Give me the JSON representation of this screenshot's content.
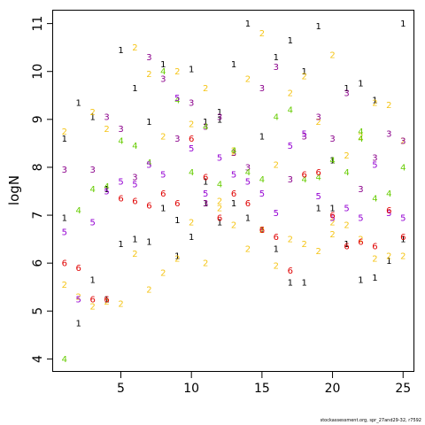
{
  "chart_data": {
    "type": "scatter",
    "ylabel": "logN",
    "xlim": [
      0.2,
      25.8
    ],
    "ylim": [
      3.73,
      11.27
    ],
    "xticks": [
      5,
      10,
      15,
      20,
      25
    ],
    "yticks": [
      4,
      5,
      6,
      7,
      8,
      9,
      10,
      11
    ],
    "marker": "series index digit",
    "grid": false,
    "series": [
      {
        "label": "1",
        "color": "#000000",
        "points": [
          [
            1,
            8.6
          ],
          [
            2,
            9.35
          ],
          [
            3,
            9.05
          ],
          [
            5,
            10.45
          ],
          [
            6,
            9.65
          ],
          [
            7,
            8.95
          ],
          [
            8,
            10.15
          ],
          [
            10,
            10.05
          ],
          [
            11,
            8.95
          ],
          [
            12,
            9.15
          ],
          [
            13,
            10.15
          ],
          [
            15,
            8.65
          ],
          [
            16,
            10.3
          ],
          [
            17,
            10.65
          ],
          [
            18,
            10.0
          ],
          [
            19,
            10.95
          ],
          [
            20,
            8.15
          ],
          [
            21,
            9.65
          ],
          [
            22,
            9.75
          ],
          [
            23,
            9.4
          ],
          [
            25,
            11.0
          ],
          [
            14,
            11.0
          ],
          [
            1,
            6.95
          ],
          [
            2,
            4.75
          ],
          [
            3,
            5.65
          ],
          [
            4,
            5.25
          ],
          [
            5,
            6.4
          ],
          [
            6,
            6.5
          ],
          [
            7,
            6.45
          ],
          [
            8,
            7.15
          ],
          [
            9,
            6.9
          ],
          [
            9,
            6.15
          ],
          [
            10,
            6.55
          ],
          [
            11,
            7.25
          ],
          [
            11,
            7.7
          ],
          [
            12,
            6.85
          ],
          [
            13,
            7.25
          ],
          [
            14,
            6.95
          ],
          [
            15,
            6.7
          ],
          [
            16,
            6.3
          ],
          [
            17,
            5.6
          ],
          [
            18,
            5.6
          ],
          [
            19,
            7.15
          ],
          [
            20,
            7.15
          ],
          [
            21,
            6.4
          ],
          [
            22,
            5.65
          ],
          [
            23,
            5.7
          ],
          [
            24,
            6.05
          ],
          [
            25,
            6.5
          ],
          [
            4,
            7.55
          ],
          [
            12,
            9.0
          ]
        ]
      },
      {
        "label": "2",
        "color": "#F5C518",
        "points": [
          [
            1,
            8.75
          ],
          [
            1,
            5.55
          ],
          [
            2,
            5.3
          ],
          [
            3,
            9.15
          ],
          [
            3,
            5.1
          ],
          [
            4,
            8.8
          ],
          [
            4,
            5.2
          ],
          [
            5,
            5.15
          ],
          [
            6,
            10.5
          ],
          [
            6,
            6.2
          ],
          [
            7,
            9.95
          ],
          [
            7,
            5.45
          ],
          [
            8,
            8.65
          ],
          [
            8,
            5.8
          ],
          [
            9,
            10.0
          ],
          [
            9,
            6.1
          ],
          [
            10,
            8.9
          ],
          [
            10,
            6.85
          ],
          [
            11,
            9.65
          ],
          [
            11,
            6.0
          ],
          [
            12,
            7.3
          ],
          [
            13,
            8.35
          ],
          [
            13,
            6.8
          ],
          [
            14,
            9.85
          ],
          [
            14,
            6.3
          ],
          [
            15,
            10.8
          ],
          [
            15,
            6.7
          ],
          [
            16,
            8.05
          ],
          [
            16,
            5.95
          ],
          [
            17,
            9.55
          ],
          [
            17,
            6.5
          ],
          [
            18,
            9.9
          ],
          [
            18,
            6.4
          ],
          [
            19,
            8.95
          ],
          [
            19,
            6.25
          ],
          [
            20,
            10.35
          ],
          [
            20,
            6.6
          ],
          [
            21,
            8.25
          ],
          [
            21,
            6.8
          ],
          [
            22,
            8.65
          ],
          [
            22,
            6.5
          ],
          [
            23,
            9.35
          ],
          [
            23,
            6.1
          ],
          [
            24,
            9.3
          ],
          [
            24,
            6.15
          ],
          [
            25,
            8.55
          ],
          [
            25,
            6.15
          ],
          [
            12,
            7.15
          ],
          [
            13,
            8.3
          ],
          [
            20,
            6.85
          ]
        ]
      },
      {
        "label": "3",
        "color": "#8B008B",
        "points": [
          [
            1,
            7.95
          ],
          [
            3,
            7.95
          ],
          [
            4,
            9.05
          ],
          [
            5,
            8.8
          ],
          [
            6,
            7.8
          ],
          [
            7,
            10.3
          ],
          [
            8,
            9.85
          ],
          [
            9,
            8.6
          ],
          [
            10,
            9.35
          ],
          [
            11,
            8.85
          ],
          [
            12,
            9.05
          ],
          [
            13,
            8.3
          ],
          [
            14,
            8.0
          ],
          [
            15,
            9.65
          ],
          [
            16,
            10.1
          ],
          [
            17,
            7.75
          ],
          [
            18,
            8.65
          ],
          [
            19,
            9.05
          ],
          [
            20,
            8.6
          ],
          [
            21,
            9.55
          ],
          [
            22,
            7.55
          ],
          [
            23,
            8.2
          ],
          [
            24,
            8.7
          ],
          [
            25,
            8.55
          ],
          [
            11,
            7.25
          ]
        ]
      },
      {
        "label": "4",
        "color": "#66CC00",
        "points": [
          [
            1,
            4.0
          ],
          [
            2,
            7.1
          ],
          [
            3,
            7.55
          ],
          [
            4,
            7.6
          ],
          [
            5,
            8.55
          ],
          [
            6,
            8.45
          ],
          [
            7,
            8.1
          ],
          [
            8,
            10.0
          ],
          [
            9,
            9.4
          ],
          [
            10,
            7.9
          ],
          [
            11,
            8.85
          ],
          [
            12,
            7.65
          ],
          [
            13,
            8.35
          ],
          [
            14,
            7.9
          ],
          [
            15,
            7.75
          ],
          [
            16,
            9.05
          ],
          [
            17,
            9.2
          ],
          [
            18,
            7.75
          ],
          [
            19,
            7.8
          ],
          [
            20,
            8.15
          ],
          [
            21,
            7.9
          ],
          [
            22,
            8.6
          ],
          [
            23,
            7.35
          ],
          [
            24,
            7.45
          ],
          [
            25,
            8.0
          ],
          [
            22,
            8.75
          ]
        ]
      },
      {
        "label": "5",
        "color": "#9400D3",
        "points": [
          [
            1,
            6.65
          ],
          [
            2,
            5.25
          ],
          [
            3,
            6.85
          ],
          [
            4,
            7.5
          ],
          [
            5,
            7.7
          ],
          [
            6,
            7.65
          ],
          [
            7,
            8.05
          ],
          [
            8,
            7.85
          ],
          [
            9,
            9.45
          ],
          [
            10,
            8.4
          ],
          [
            11,
            7.45
          ],
          [
            12,
            8.2
          ],
          [
            13,
            7.85
          ],
          [
            14,
            7.7
          ],
          [
            15,
            7.45
          ],
          [
            16,
            7.05
          ],
          [
            17,
            8.45
          ],
          [
            18,
            8.7
          ],
          [
            19,
            7.4
          ],
          [
            20,
            6.95
          ],
          [
            21,
            7.15
          ],
          [
            22,
            6.95
          ],
          [
            23,
            8.05
          ],
          [
            24,
            7.05
          ],
          [
            25,
            6.95
          ]
        ]
      },
      {
        "label": "6",
        "color": "#E00000",
        "points": [
          [
            1,
            6.0
          ],
          [
            2,
            5.9
          ],
          [
            3,
            5.25
          ],
          [
            4,
            5.25
          ],
          [
            5,
            7.35
          ],
          [
            6,
            7.3
          ],
          [
            7,
            7.2
          ],
          [
            8,
            7.45
          ],
          [
            9,
            7.25
          ],
          [
            10,
            8.6
          ],
          [
            11,
            7.8
          ],
          [
            12,
            6.95
          ],
          [
            13,
            7.45
          ],
          [
            14,
            7.25
          ],
          [
            15,
            6.7
          ],
          [
            16,
            6.55
          ],
          [
            17,
            5.85
          ],
          [
            18,
            7.85
          ],
          [
            19,
            7.9
          ],
          [
            20,
            7.0
          ],
          [
            21,
            6.35
          ],
          [
            22,
            6.45
          ],
          [
            23,
            6.35
          ],
          [
            24,
            7.1
          ],
          [
            25,
            6.55
          ]
        ]
      }
    ]
  },
  "credit": "stockassessment.org, spr_27and29-32, r7592"
}
